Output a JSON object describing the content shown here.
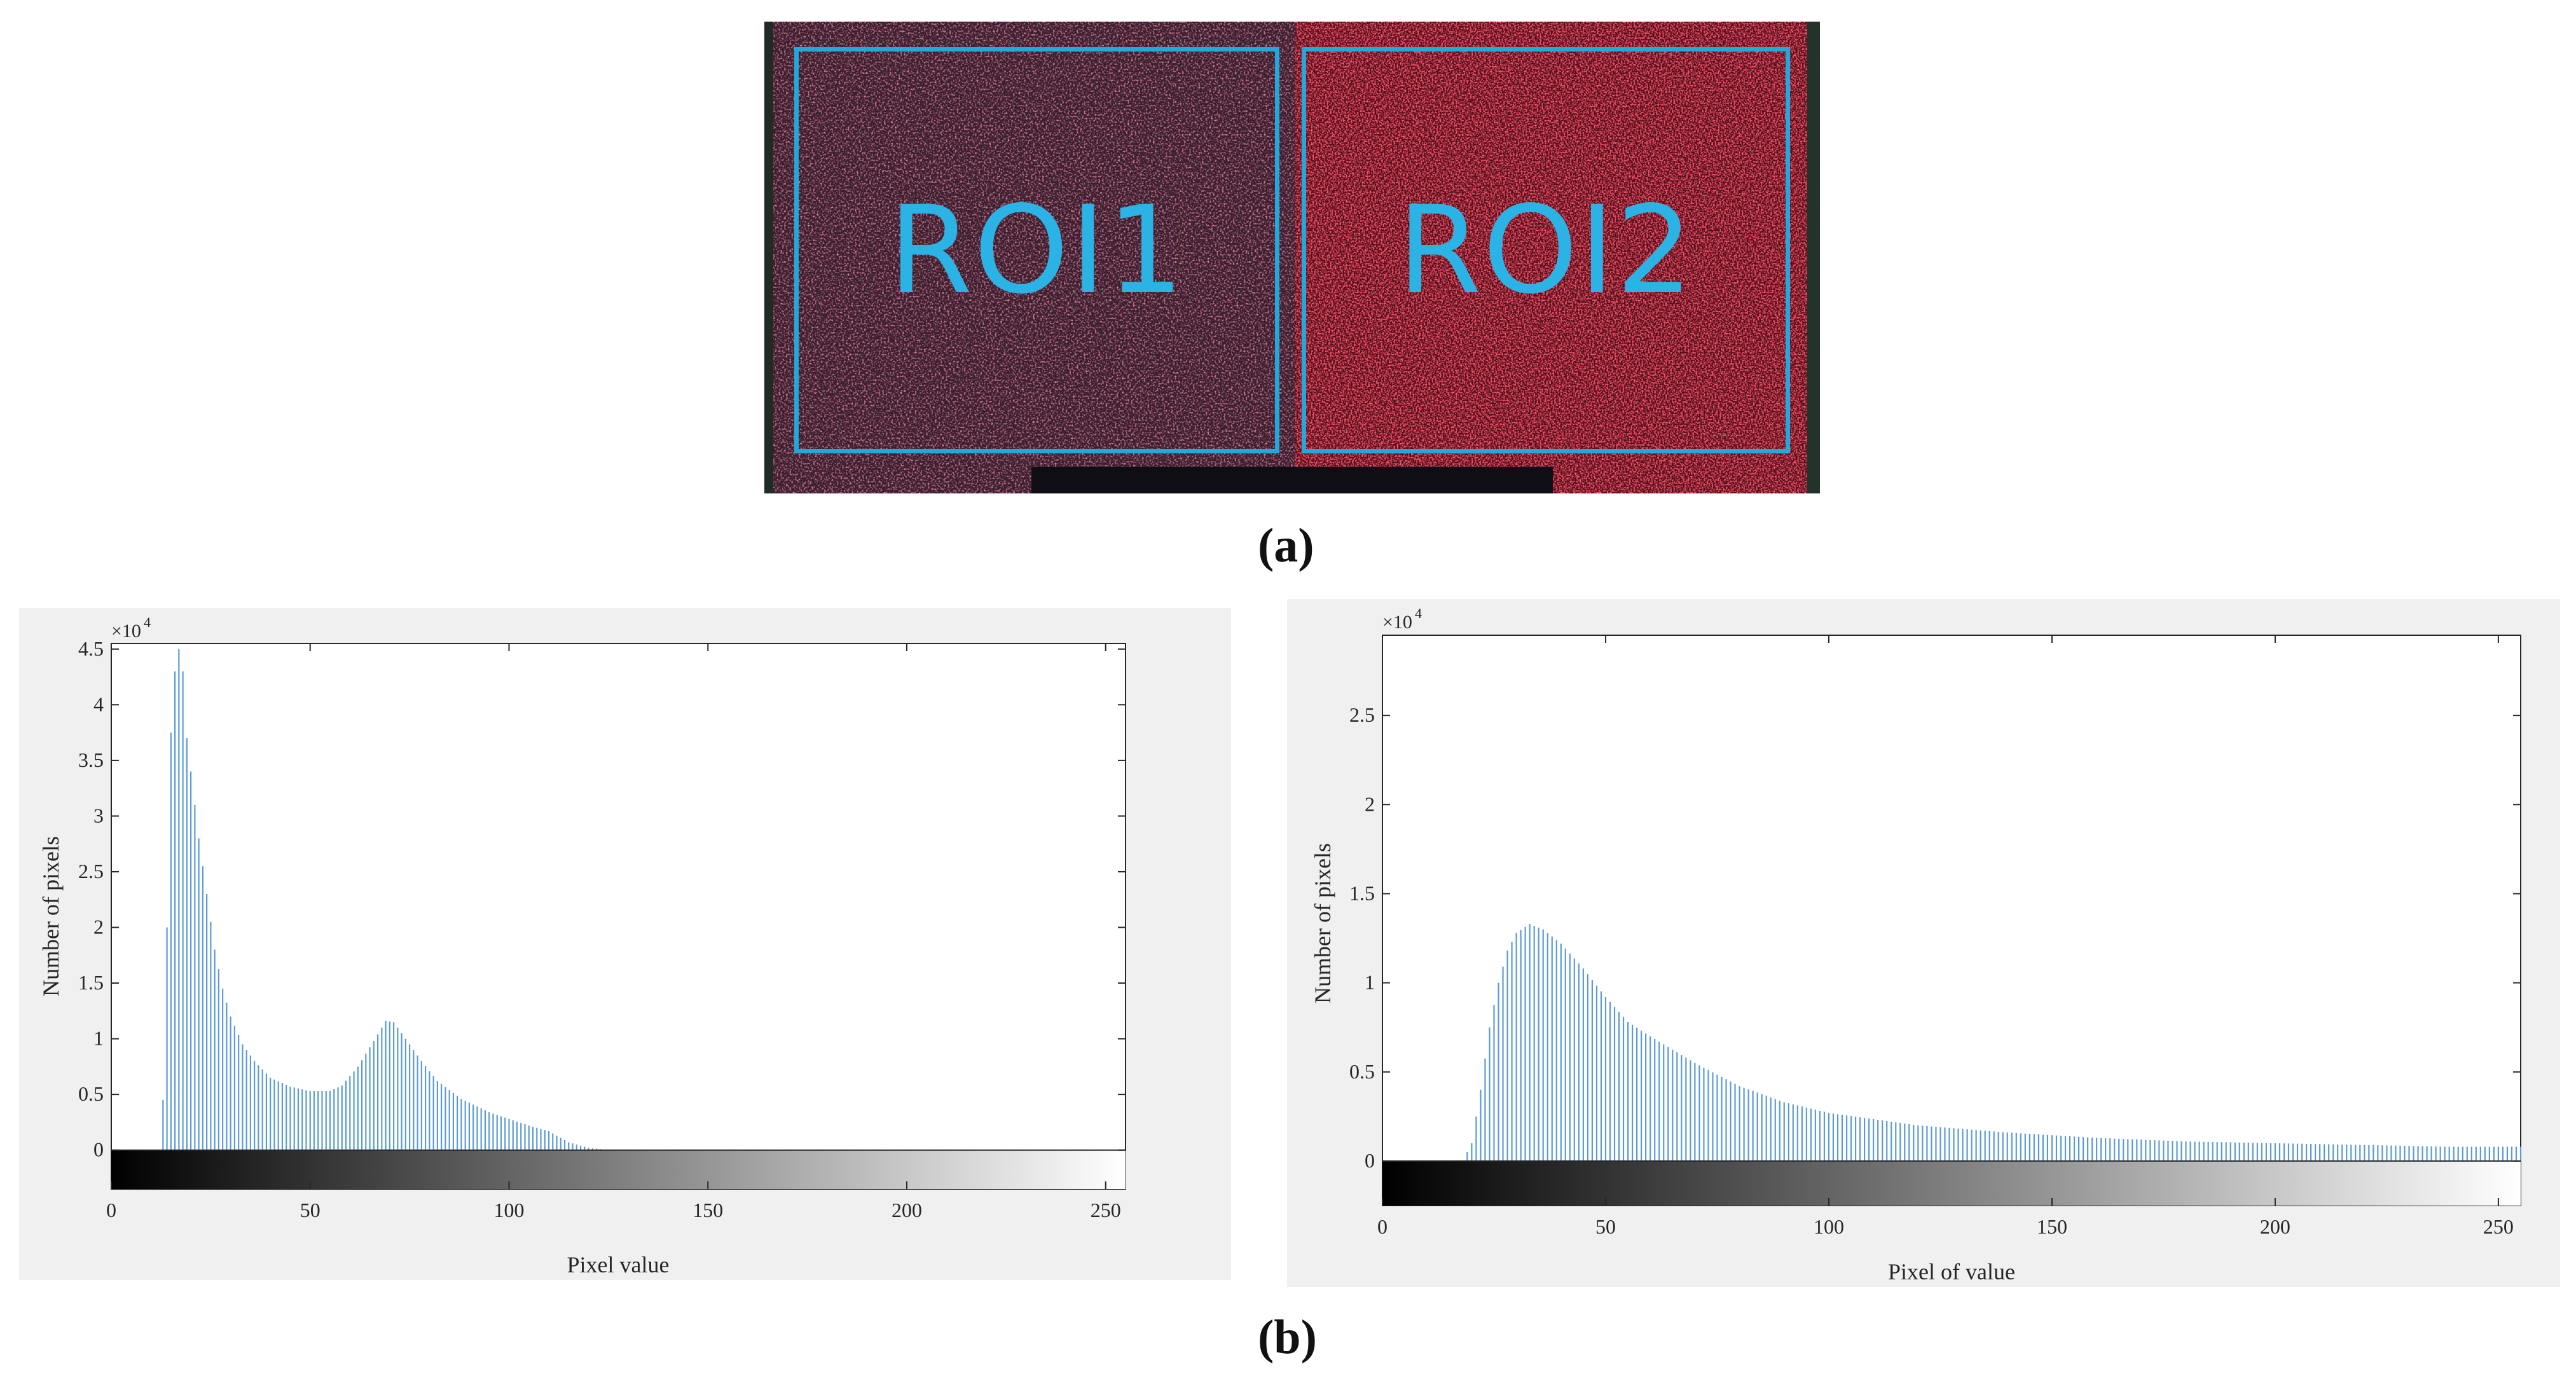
{
  "figure": {
    "caption_a": "(a)",
    "caption_b": "(b)",
    "roi_labels": [
      "ROI1",
      "ROI2"
    ],
    "colors": {
      "roi_box": "#1fa9dc",
      "bar": "#5b9bd5",
      "panel_bg": "#f0f0f0"
    }
  },
  "chart_data": [
    {
      "type": "bar",
      "title": "",
      "xlabel": "Pixel value",
      "ylabel": "Number of pixels",
      "y_exponent_label": "×10",
      "y_exponent": "4",
      "xlim": [
        0,
        255
      ],
      "ylim": [
        -0.35,
        4.55
      ],
      "xticks": [
        0,
        50,
        100,
        150,
        200,
        250
      ],
      "xtick_labels": [
        "0",
        "50",
        "100",
        "150",
        "200",
        "250"
      ],
      "yticks": [
        0,
        0.5,
        1,
        1.5,
        2,
        2.5,
        3,
        3.5,
        4,
        4.5
      ],
      "ytick_labels": [
        "0",
        "0.5",
        "1",
        "1.5",
        "2",
        "2.5",
        "3",
        "3.5",
        "4",
        "4.5"
      ],
      "y_units": "×10^4 pixels",
      "profile": [
        [
          0,
          0
        ],
        [
          12,
          0
        ],
        [
          13,
          0.45
        ],
        [
          14,
          2.0
        ],
        [
          15,
          3.75
        ],
        [
          16,
          4.3
        ],
        [
          17,
          4.5
        ],
        [
          18,
          4.3
        ],
        [
          19,
          3.7
        ],
        [
          20,
          3.4
        ],
        [
          22,
          2.8
        ],
        [
          24,
          2.3
        ],
        [
          26,
          1.8
        ],
        [
          28,
          1.45
        ],
        [
          30,
          1.2
        ],
        [
          33,
          0.95
        ],
        [
          36,
          0.8
        ],
        [
          40,
          0.65
        ],
        [
          45,
          0.57
        ],
        [
          50,
          0.53
        ],
        [
          55,
          0.53
        ],
        [
          58,
          0.58
        ],
        [
          62,
          0.75
        ],
        [
          66,
          0.98
        ],
        [
          69,
          1.16
        ],
        [
          71,
          1.15
        ],
        [
          74,
          1.0
        ],
        [
          78,
          0.8
        ],
        [
          82,
          0.62
        ],
        [
          88,
          0.46
        ],
        [
          95,
          0.34
        ],
        [
          105,
          0.22
        ],
        [
          110,
          0.17
        ],
        [
          115,
          0.07
        ],
        [
          120,
          0.02
        ],
        [
          125,
          0
        ],
        [
          255,
          0
        ]
      ]
    },
    {
      "type": "bar",
      "title": "",
      "xlabel": "Pixel of value",
      "ylabel": "Number of pixels",
      "y_exponent_label": "×10",
      "y_exponent": "4",
      "xlim": [
        0,
        255
      ],
      "ylim": [
        -0.25,
        2.95
      ],
      "xticks": [
        0,
        50,
        100,
        150,
        200,
        250
      ],
      "xtick_labels": [
        "0",
        "50",
        "100",
        "150",
        "200",
        "250"
      ],
      "yticks": [
        0,
        0.5,
        1,
        1.5,
        2,
        2.5
      ],
      "ytick_labels": [
        "0",
        "0.5",
        "1",
        "1.5",
        "2",
        "2.5"
      ],
      "y_units": "×10^4 pixels",
      "profile": [
        [
          0,
          0
        ],
        [
          18,
          0
        ],
        [
          20,
          0.1
        ],
        [
          22,
          0.4
        ],
        [
          24,
          0.75
        ],
        [
          26,
          1.0
        ],
        [
          28,
          1.18
        ],
        [
          30,
          1.28
        ],
        [
          33,
          1.33
        ],
        [
          36,
          1.3
        ],
        [
          40,
          1.22
        ],
        [
          45,
          1.08
        ],
        [
          50,
          0.92
        ],
        [
          55,
          0.78
        ],
        [
          60,
          0.7
        ],
        [
          70,
          0.55
        ],
        [
          80,
          0.42
        ],
        [
          90,
          0.33
        ],
        [
          100,
          0.27
        ],
        [
          120,
          0.2
        ],
        [
          140,
          0.16
        ],
        [
          160,
          0.13
        ],
        [
          180,
          0.11
        ],
        [
          200,
          0.1
        ],
        [
          220,
          0.09
        ],
        [
          240,
          0.08
        ],
        [
          255,
          0.08
        ]
      ]
    }
  ]
}
